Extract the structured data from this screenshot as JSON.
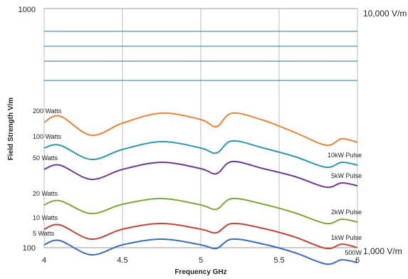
{
  "chart_data": {
    "type": "line",
    "xlabel": "Frequency GHz",
    "ylabel": "Field Strength V/m",
    "xlim": [
      4,
      6
    ],
    "x_ticks": [
      "4",
      "4.5",
      "5",
      "5.5",
      "6"
    ],
    "x_tick_values": [
      4,
      4.5,
      5,
      5.5,
      6
    ],
    "y_ticks_left": [
      {
        "label": "1000",
        "at": "top"
      },
      {
        "label": "100",
        "at": "bottom"
      }
    ],
    "y_labels_right": [
      {
        "label": "10,000 V/m",
        "at": "top"
      },
      {
        "label": "1,000 V/m",
        "at": "bottom"
      }
    ],
    "grid": true,
    "x": [
      4.0,
      4.1,
      4.3,
      4.5,
      4.75,
      5.0,
      5.1,
      5.2,
      5.4,
      5.6,
      5.8,
      5.9,
      6.0
    ],
    "series": [
      {
        "name": "200 Watts",
        "right_label": "",
        "color": "#E8833A",
        "values": [
          178,
          187,
          160,
          177,
          191,
          182,
          172,
          191,
          181,
          164,
          146,
          155,
          150
        ]
      },
      {
        "name": "100 Watts",
        "right_label": "10kW Pulse",
        "color": "#2E95AE",
        "values": [
          142,
          146,
          126,
          140,
          151,
          142,
          135,
          152,
          142,
          130,
          115,
          122,
          118
        ]
      },
      {
        "name": "50 Watts",
        "right_label": "5kW Pulse",
        "color": "#6C3A91",
        "values": [
          112,
          118,
          98,
          112,
          122,
          113,
          106,
          123,
          113,
          102,
          87,
          93,
          89
        ]
      },
      {
        "name": "20 Watts",
        "right_label": "2kW Pulse",
        "color": "#7DA63A",
        "values": [
          62,
          68,
          50,
          63,
          71,
          62,
          56,
          71,
          63,
          51,
          36,
          42,
          38
        ]
      },
      {
        "name": "10 Watts",
        "right_label": "1kW Pulse",
        "color": "#C0443A",
        "values": [
          28,
          34,
          14,
          28,
          36,
          28,
          23,
          36,
          29,
          17,
          1,
          7,
          2
        ]
      },
      {
        "name": "5 Watts",
        "right_label": "500W",
        "color": "#3B6CB4",
        "values": [
          6,
          12,
          -8,
          6,
          14,
          6,
          1,
          14,
          7,
          -5,
          -21,
          -15,
          -19
        ]
      }
    ]
  }
}
